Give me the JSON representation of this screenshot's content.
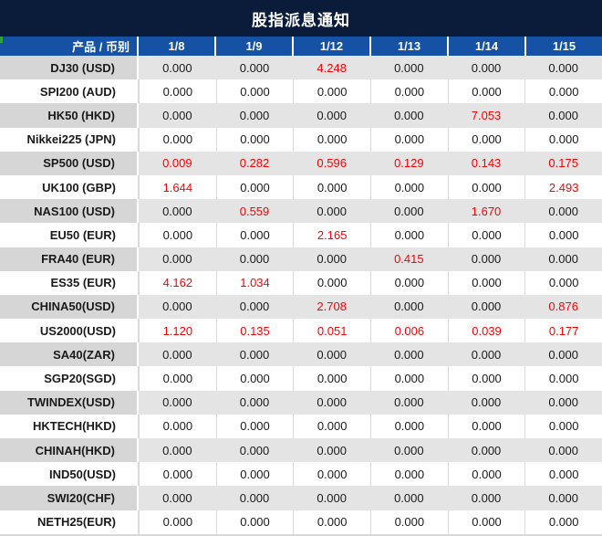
{
  "title": "股指派息通知",
  "colors": {
    "title_bg": "#0B1C3B",
    "header_bg": "#1552A5",
    "band_data_bg": "#E4E4E4",
    "band_product_bg": "#D6D6D6",
    "gridline": "#D9D9D9",
    "highlight_red": "#FF0000",
    "text": "#1A1A1A",
    "corner_marker_green": "#2F9E44"
  },
  "table": {
    "header": {
      "product_label": "产品 / 币别",
      "dates": [
        "1/8",
        "1/9",
        "1/12",
        "1/13",
        "1/14",
        "1/15"
      ]
    },
    "zero_value": "0.000",
    "rows": [
      {
        "product": "DJ30 (USD)",
        "values": [
          "0.000",
          "0.000",
          "4.248",
          "0.000",
          "0.000",
          "0.000"
        ]
      },
      {
        "product": "SPI200 (AUD)",
        "values": [
          "0.000",
          "0.000",
          "0.000",
          "0.000",
          "0.000",
          "0.000"
        ]
      },
      {
        "product": "HK50 (HKD)",
        "values": [
          "0.000",
          "0.000",
          "0.000",
          "0.000",
          "7.053",
          "0.000"
        ]
      },
      {
        "product": "Nikkei225 (JPN)",
        "values": [
          "0.000",
          "0.000",
          "0.000",
          "0.000",
          "0.000",
          "0.000"
        ]
      },
      {
        "product": "SP500 (USD)",
        "values": [
          "0.009",
          "0.282",
          "0.596",
          "0.129",
          "0.143",
          "0.175"
        ]
      },
      {
        "product": "UK100 (GBP)",
        "values": [
          "1.644",
          "0.000",
          "0.000",
          "0.000",
          "0.000",
          "2.493"
        ]
      },
      {
        "product": "NAS100 (USD)",
        "values": [
          "0.000",
          "0.559",
          "0.000",
          "0.000",
          "1.670",
          "0.000"
        ]
      },
      {
        "product": "EU50 (EUR)",
        "values": [
          "0.000",
          "0.000",
          "2.165",
          "0.000",
          "0.000",
          "0.000"
        ]
      },
      {
        "product": "FRA40 (EUR)",
        "values": [
          "0.000",
          "0.000",
          "0.000",
          "0.415",
          "0.000",
          "0.000"
        ]
      },
      {
        "product": "ES35 (EUR)",
        "values": [
          "4.162",
          "1.034",
          "0.000",
          "0.000",
          "0.000",
          "0.000"
        ]
      },
      {
        "product": "CHINA50(USD)",
        "values": [
          "0.000",
          "0.000",
          "2.708",
          "0.000",
          "0.000",
          "0.876"
        ]
      },
      {
        "product": "US2000(USD)",
        "values": [
          "1.120",
          "0.135",
          "0.051",
          "0.006",
          "0.039",
          "0.177"
        ]
      },
      {
        "product": "SA40(ZAR)",
        "values": [
          "0.000",
          "0.000",
          "0.000",
          "0.000",
          "0.000",
          "0.000"
        ]
      },
      {
        "product": "SGP20(SGD)",
        "values": [
          "0.000",
          "0.000",
          "0.000",
          "0.000",
          "0.000",
          "0.000"
        ]
      },
      {
        "product": "TWINDEX(USD)",
        "values": [
          "0.000",
          "0.000",
          "0.000",
          "0.000",
          "0.000",
          "0.000"
        ]
      },
      {
        "product": "HKTECH(HKD)",
        "values": [
          "0.000",
          "0.000",
          "0.000",
          "0.000",
          "0.000",
          "0.000"
        ]
      },
      {
        "product": "CHINAH(HKD)",
        "values": [
          "0.000",
          "0.000",
          "0.000",
          "0.000",
          "0.000",
          "0.000"
        ]
      },
      {
        "product": "IND50(USD)",
        "values": [
          "0.000",
          "0.000",
          "0.000",
          "0.000",
          "0.000",
          "0.000"
        ]
      },
      {
        "product": "SWI20(CHF)",
        "values": [
          "0.000",
          "0.000",
          "0.000",
          "0.000",
          "0.000",
          "0.000"
        ]
      },
      {
        "product": "NETH25(EUR)",
        "values": [
          "0.000",
          "0.000",
          "0.000",
          "0.000",
          "0.000",
          "0.000"
        ]
      }
    ]
  }
}
